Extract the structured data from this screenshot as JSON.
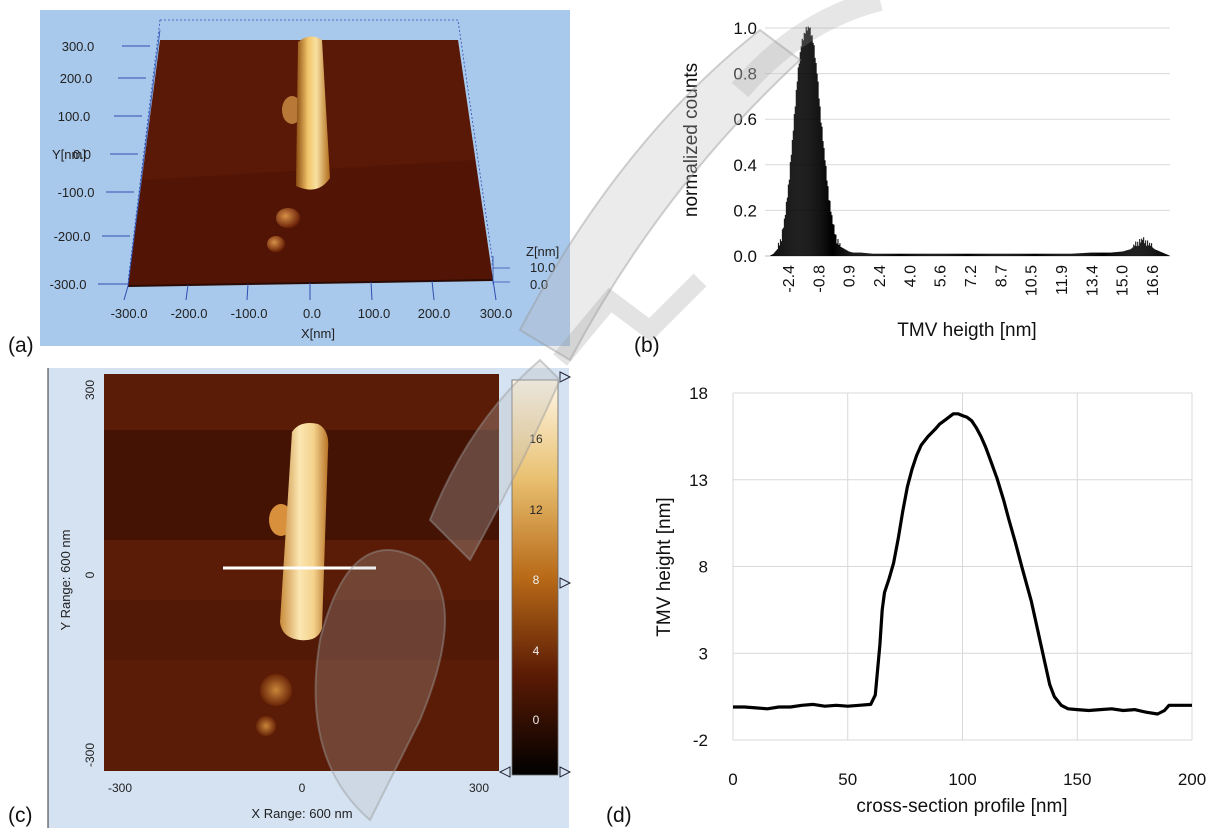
{
  "panels": {
    "a": {
      "letter": "(a)",
      "y_axis_label": "Y[nm]",
      "x_axis_label": "X[nm]",
      "z_axis_label": "Z[nm]",
      "y_ticks": [
        "300.0",
        "200.0",
        "100.0",
        "0.0",
        "-100.0",
        "-200.0",
        "-300.0"
      ],
      "x_ticks": [
        "-300.0",
        "-200.0",
        "-100.0",
        "0.0",
        "100.0",
        "200.0",
        "300.0"
      ],
      "z_ticks": [
        "10.0",
        "0.0"
      ],
      "colors": {
        "background": "#a8c8ec",
        "surface": "#5a1806",
        "rod": "#e0a64a"
      }
    },
    "b": {
      "letter": "(b)",
      "ylabel": "normalized counts",
      "xlabel": "TMV heigth [nm]",
      "y_ticks": [
        "1.0",
        "0.8",
        "0.6",
        "0.4",
        "0.2",
        "0.0"
      ],
      "x_ticks": [
        "-2.4",
        "-0.8",
        "0.9",
        "2.4",
        "4.0",
        "5.6",
        "7.2",
        "8.7",
        "10.5",
        "11.9",
        "13.4",
        "15.0",
        "16.6"
      ]
    },
    "c": {
      "letter": "(c)",
      "y_range_label": "Y Range: 600 nm",
      "x_range_label": "X Range: 600 nm",
      "y_ticks": [
        "300",
        "0",
        "-300"
      ],
      "x_ticks": [
        "-300",
        "0",
        "300"
      ],
      "colorbar_ticks": [
        "16",
        "12",
        "8",
        "4",
        "0"
      ],
      "colors": {
        "frame": "#d4e2f2",
        "colorbar_top": "#fff8e8",
        "colorbar_bottom": "#000000"
      }
    },
    "d": {
      "letter": "(d)"
    }
  },
  "chart_data": [
    {
      "type": "bar",
      "panel": "b",
      "xlabel": "TMV heigth [nm]",
      "ylabel": "normalized counts",
      "ylim": [
        0,
        1.0
      ],
      "xlim": [
        -2.4,
        18.0
      ],
      "grid": "horizontal",
      "x": [
        -2.2,
        -2.0,
        -1.8,
        -1.6,
        -1.4,
        -1.2,
        -1.0,
        -0.8,
        -0.6,
        -0.4,
        -0.2,
        0.0,
        0.2,
        0.4,
        0.6,
        0.8,
        1.0,
        1.2,
        1.4,
        1.6,
        1.8,
        2.0,
        2.4,
        3.0,
        4.0,
        5.0,
        6.0,
        7.0,
        8.0,
        9.0,
        10.0,
        11.0,
        12.0,
        13.0,
        14.0,
        15.0,
        15.6,
        16.0,
        16.2,
        16.4,
        16.6,
        16.8,
        17.0,
        17.2,
        17.6,
        18.0
      ],
      "values": [
        0.0,
        0.01,
        0.03,
        0.08,
        0.18,
        0.35,
        0.55,
        0.78,
        0.92,
        0.99,
        1.0,
        0.95,
        0.8,
        0.6,
        0.42,
        0.26,
        0.14,
        0.07,
        0.04,
        0.03,
        0.02,
        0.015,
        0.015,
        0.01,
        0.01,
        0.01,
        0.01,
        0.01,
        0.01,
        0.01,
        0.01,
        0.01,
        0.01,
        0.01,
        0.015,
        0.015,
        0.02,
        0.03,
        0.045,
        0.06,
        0.07,
        0.06,
        0.045,
        0.03,
        0.015,
        0.0
      ]
    },
    {
      "type": "line",
      "panel": "d",
      "xlabel": "cross-section profile [nm]",
      "ylabel": "TMV height [nm]",
      "xlim": [
        0,
        200
      ],
      "ylim": [
        -2,
        18
      ],
      "x_ticks": [
        0,
        50,
        100,
        150,
        200
      ],
      "y_ticks": [
        18,
        13,
        8,
        3,
        -2
      ],
      "grid": "both",
      "x": [
        0,
        5,
        10,
        15,
        20,
        25,
        30,
        35,
        40,
        45,
        50,
        55,
        60,
        62,
        64,
        65,
        66,
        68,
        70,
        72,
        74,
        76,
        78,
        80,
        82,
        85,
        88,
        90,
        92,
        94,
        96,
        98,
        100,
        102,
        104,
        106,
        108,
        110,
        112,
        115,
        118,
        120,
        123,
        126,
        130,
        133,
        136,
        138,
        140,
        143,
        146,
        150,
        155,
        160,
        165,
        170,
        175,
        180,
        185,
        188,
        190,
        195,
        200
      ],
      "y": [
        -0.1,
        -0.1,
        -0.15,
        -0.2,
        -0.1,
        -0.1,
        0.0,
        0.05,
        -0.05,
        0.0,
        -0.05,
        0.0,
        0.05,
        0.6,
        3.5,
        5.5,
        6.5,
        7.3,
        8.2,
        9.6,
        11.2,
        12.6,
        13.6,
        14.4,
        15.0,
        15.5,
        15.9,
        16.2,
        16.4,
        16.6,
        16.8,
        16.8,
        16.7,
        16.6,
        16.4,
        16.0,
        15.5,
        14.9,
        14.2,
        13.1,
        11.8,
        10.8,
        9.4,
        7.9,
        6.0,
        4.2,
        2.4,
        1.2,
        0.5,
        0.0,
        -0.2,
        -0.25,
        -0.3,
        -0.25,
        -0.2,
        -0.3,
        -0.25,
        -0.4,
        -0.5,
        -0.3,
        0.0,
        0.0,
        0.0
      ]
    }
  ]
}
